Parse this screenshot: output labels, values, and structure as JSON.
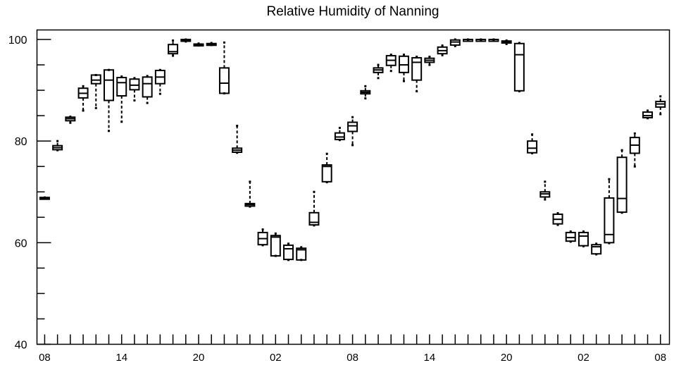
{
  "chart_data": {
    "type": "box",
    "title": "Relative Humidity of Nanning",
    "xlabel": "",
    "ylabel": "",
    "ylim": [
      40,
      100
    ],
    "yticks": [
      40,
      60,
      80,
      100
    ],
    "y_minor_step": 5,
    "grid": false,
    "legend": "none",
    "x_hour_ticks": [
      {
        "hour": 0,
        "label": "08"
      },
      {
        "hour": 6,
        "label": "14"
      },
      {
        "hour": 12,
        "label": "20"
      },
      {
        "hour": 18,
        "label": "02"
      },
      {
        "hour": 24,
        "label": "08"
      },
      {
        "hour": 30,
        "label": "14"
      },
      {
        "hour": 36,
        "label": "20"
      },
      {
        "hour": 42,
        "label": "02"
      },
      {
        "hour": 48,
        "label": "08"
      }
    ],
    "x_range": [
      -0.6,
      48.7
    ],
    "boxes": [
      {
        "hour": 0,
        "q1": 68.7,
        "median": 68.8,
        "q3": 68.9,
        "whisker_low": 68.7,
        "whisker_high": 68.9
      },
      {
        "hour": 1,
        "q1": 78.3,
        "median": 78.7,
        "q3": 79.1,
        "whisker_low": 78.2,
        "whisker_high": 80.0
      },
      {
        "hour": 2,
        "q1": 84.0,
        "median": 84.4,
        "q3": 84.7,
        "whisker_low": 83.6,
        "whisker_high": 84.8
      },
      {
        "hour": 3,
        "q1": 88.5,
        "median": 89.4,
        "q3": 90.4,
        "whisker_low": 86.0,
        "whisker_high": 90.8
      },
      {
        "hour": 4,
        "q1": 91.3,
        "median": 92.0,
        "q3": 93.0,
        "whisker_low": 86.5,
        "whisker_high": 93.0
      },
      {
        "hour": 5,
        "q1": 88.0,
        "median": 92.0,
        "q3": 94.0,
        "whisker_low": 82.0,
        "whisker_high": 94.0
      },
      {
        "hour": 6,
        "q1": 88.9,
        "median": 91.5,
        "q3": 92.5,
        "whisker_low": 83.8,
        "whisker_high": 92.7
      },
      {
        "hour": 7,
        "q1": 90.1,
        "median": 91.0,
        "q3": 92.2,
        "whisker_low": 88.0,
        "whisker_high": 92.4
      },
      {
        "hour": 8,
        "q1": 88.7,
        "median": 91.3,
        "q3": 92.6,
        "whisker_low": 87.5,
        "whisker_high": 92.8
      },
      {
        "hour": 9,
        "q1": 91.3,
        "median": 92.6,
        "q3": 93.9,
        "whisker_low": 89.3,
        "whisker_high": 94.0
      },
      {
        "hour": 10,
        "q1": 97.2,
        "median": 97.6,
        "q3": 99.0,
        "whisker_low": 96.8,
        "whisker_high": 99.8
      },
      {
        "hour": 11,
        "q1": 99.7,
        "median": 99.9,
        "q3": 100.0,
        "whisker_low": 99.6,
        "whisker_high": 100.0
      },
      {
        "hour": 12,
        "q1": 98.9,
        "median": 99.0,
        "q3": 99.1,
        "whisker_low": 98.8,
        "whisker_high": 99.2
      },
      {
        "hour": 13,
        "q1": 99.0,
        "median": 99.1,
        "q3": 99.2,
        "whisker_low": 98.9,
        "whisker_high": 99.3
      },
      {
        "hour": 14,
        "q1": 89.4,
        "median": 91.4,
        "q3": 94.4,
        "whisker_low": 89.4,
        "whisker_high": 99.4
      },
      {
        "hour": 15,
        "q1": 77.8,
        "median": 78.2,
        "q3": 78.6,
        "whisker_low": 77.7,
        "whisker_high": 83.0
      },
      {
        "hour": 16,
        "q1": 67.2,
        "median": 67.5,
        "q3": 67.7,
        "whisker_low": 67.1,
        "whisker_high": 72.0
      },
      {
        "hour": 17,
        "q1": 59.6,
        "median": 60.8,
        "q3": 62.0,
        "whisker_low": 59.5,
        "whisker_high": 62.6
      },
      {
        "hour": 18,
        "q1": 57.4,
        "median": 61.1,
        "q3": 61.4,
        "whisker_low": 57.4,
        "whisker_high": 61.8
      },
      {
        "hour": 19,
        "q1": 56.7,
        "median": 58.8,
        "q3": 59.5,
        "whisker_low": 56.6,
        "whisker_high": 59.8
      },
      {
        "hour": 20,
        "q1": 56.6,
        "median": 58.6,
        "q3": 58.9,
        "whisker_low": 56.6,
        "whisker_high": 59.1
      },
      {
        "hour": 21,
        "q1": 63.5,
        "median": 64.0,
        "q3": 65.9,
        "whisker_low": 63.4,
        "whisker_high": 70.0
      },
      {
        "hour": 22,
        "q1": 72.0,
        "median": 75.0,
        "q3": 75.3,
        "whisker_low": 71.9,
        "whisker_high": 77.5
      },
      {
        "hour": 23,
        "q1": 80.3,
        "median": 80.8,
        "q3": 81.6,
        "whisker_low": 80.2,
        "whisker_high": 82.6
      },
      {
        "hour": 24,
        "q1": 81.9,
        "median": 83.0,
        "q3": 83.7,
        "whisker_low": 79.2,
        "whisker_high": 84.7
      },
      {
        "hour": 25,
        "q1": 89.3,
        "median": 89.6,
        "q3": 89.9,
        "whisker_low": 88.4,
        "whisker_high": 90.8
      },
      {
        "hour": 26,
        "q1": 93.5,
        "median": 94.0,
        "q3": 94.4,
        "whisker_low": 92.4,
        "whisker_high": 95.0
      },
      {
        "hour": 27,
        "q1": 94.9,
        "median": 95.9,
        "q3": 96.8,
        "whisker_low": 93.8,
        "whisker_high": 97.0
      },
      {
        "hour": 28,
        "q1": 93.5,
        "median": 95.0,
        "q3": 96.7,
        "whisker_low": 91.8,
        "whisker_high": 97.0
      },
      {
        "hour": 29,
        "q1": 92.0,
        "median": 95.5,
        "q3": 96.4,
        "whisker_low": 89.8,
        "whisker_high": 96.6
      },
      {
        "hour": 30,
        "q1": 95.5,
        "median": 95.9,
        "q3": 96.3,
        "whisker_low": 95.0,
        "whisker_high": 96.6
      },
      {
        "hour": 31,
        "q1": 97.2,
        "median": 97.8,
        "q3": 98.5,
        "whisker_low": 96.9,
        "whisker_high": 98.8
      },
      {
        "hour": 32,
        "q1": 98.9,
        "median": 99.5,
        "q3": 99.9,
        "whisker_low": 98.7,
        "whisker_high": 100.0
      },
      {
        "hour": 33,
        "q1": 99.9,
        "median": 100.0,
        "q3": 100.0,
        "whisker_low": 99.9,
        "whisker_high": 100.0
      },
      {
        "hour": 34,
        "q1": 99.9,
        "median": 100.0,
        "q3": 100.0,
        "whisker_low": 99.9,
        "whisker_high": 100.0
      },
      {
        "hour": 35,
        "q1": 99.9,
        "median": 100.0,
        "q3": 100.0,
        "whisker_low": 99.9,
        "whisker_high": 100.0
      },
      {
        "hour": 36,
        "q1": 99.3,
        "median": 99.5,
        "q3": 99.7,
        "whisker_low": 99.1,
        "whisker_high": 99.8
      },
      {
        "hour": 37,
        "q1": 89.9,
        "median": 97.0,
        "q3": 99.2,
        "whisker_low": 89.8,
        "whisker_high": 99.3
      },
      {
        "hour": 38,
        "q1": 77.7,
        "median": 78.6,
        "q3": 80.0,
        "whisker_low": 77.6,
        "whisker_high": 81.3
      },
      {
        "hour": 39,
        "q1": 69.0,
        "median": 69.6,
        "q3": 70.0,
        "whisker_low": 68.5,
        "whisker_high": 72.0
      },
      {
        "hour": 40,
        "q1": 63.7,
        "median": 64.6,
        "q3": 65.6,
        "whisker_low": 63.5,
        "whisker_high": 65.8
      },
      {
        "hour": 41,
        "q1": 60.3,
        "median": 61.0,
        "q3": 62.0,
        "whisker_low": 60.2,
        "whisker_high": 62.2
      },
      {
        "hour": 42,
        "q1": 59.4,
        "median": 61.3,
        "q3": 62.0,
        "whisker_low": 59.3,
        "whisker_high": 62.2
      },
      {
        "hour": 43,
        "q1": 57.8,
        "median": 59.2,
        "q3": 59.6,
        "whisker_low": 57.7,
        "whisker_high": 59.8
      },
      {
        "hour": 44,
        "q1": 60.0,
        "median": 61.6,
        "q3": 68.8,
        "whisker_low": 59.9,
        "whisker_high": 72.5
      },
      {
        "hour": 45,
        "q1": 66.0,
        "median": 68.7,
        "q3": 76.8,
        "whisker_low": 65.9,
        "whisker_high": 78.2
      },
      {
        "hour": 46,
        "q1": 77.6,
        "median": 79.2,
        "q3": 80.7,
        "whisker_low": 75.0,
        "whisker_high": 81.5
      },
      {
        "hour": 47,
        "q1": 84.6,
        "median": 85.0,
        "q3": 85.7,
        "whisker_low": 84.5,
        "whisker_high": 86.0
      },
      {
        "hour": 48,
        "q1": 86.7,
        "median": 87.3,
        "q3": 87.8,
        "whisker_low": 85.3,
        "whisker_high": 88.8
      }
    ]
  }
}
